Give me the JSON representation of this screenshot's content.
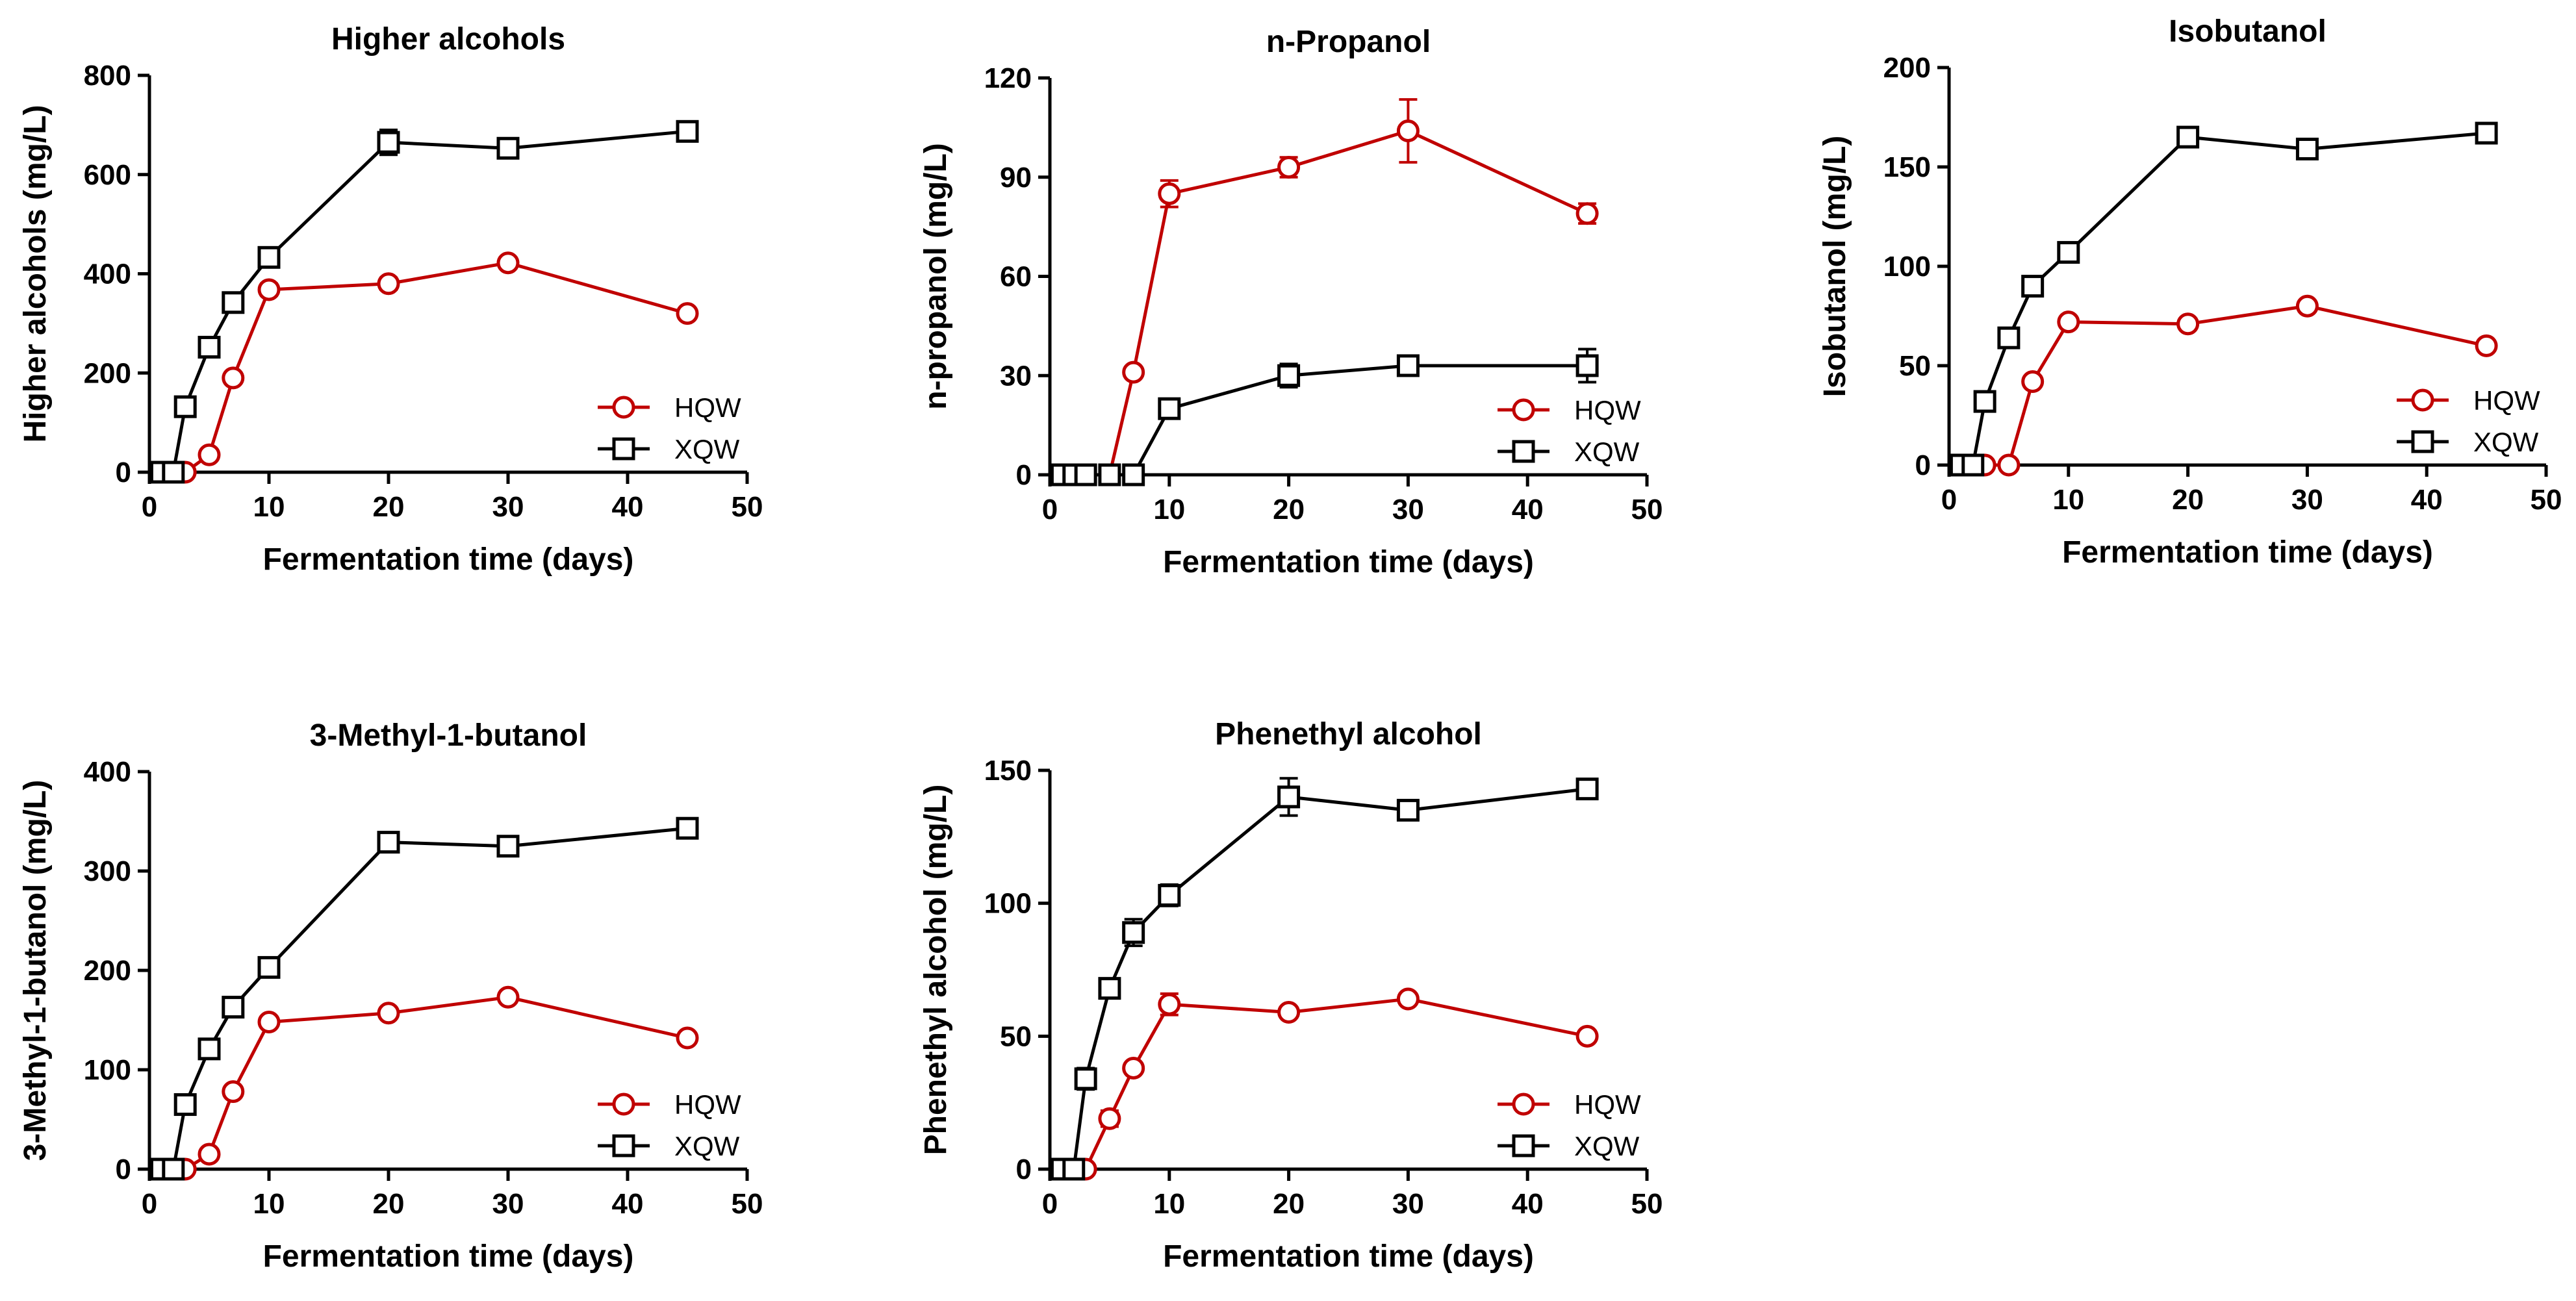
{
  "colors": {
    "HQW": "#c00000",
    "XQW": "#000000"
  },
  "chart_data": [
    {
      "type": "line",
      "title": "Higher alcohols",
      "xlabel": "Fermentation time (days)",
      "ylabel": "Higher alcohols (mg/L)",
      "xlim": [
        0,
        50
      ],
      "ylim": [
        0,
        800
      ],
      "xticks": [
        0,
        10,
        20,
        30,
        40,
        50
      ],
      "yticks": [
        0,
        200,
        400,
        600,
        800
      ],
      "legend": "bottom-right",
      "series": [
        {
          "name": "HQW",
          "marker": "circle",
          "x": [
            1,
            2,
            3,
            5,
            7,
            10,
            20,
            30,
            45
          ],
          "y": [
            0,
            0,
            0,
            35,
            190,
            368,
            380,
            422,
            320
          ],
          "err": [
            0,
            0,
            0,
            6,
            10,
            12,
            12,
            10,
            10
          ]
        },
        {
          "name": "XQW",
          "marker": "square",
          "x": [
            1,
            2,
            3,
            5,
            7,
            10,
            20,
            30,
            45
          ],
          "y": [
            0,
            0,
            132,
            252,
            342,
            433,
            665,
            653,
            687
          ],
          "err": [
            0,
            0,
            8,
            10,
            10,
            12,
            25,
            12,
            10
          ]
        }
      ]
    },
    {
      "type": "line",
      "title": "n-Propanol",
      "xlabel": "Fermentation time (days)",
      "ylabel": "n-propanol  (mg/L)",
      "xlim": [
        0,
        50
      ],
      "ylim": [
        0,
        120
      ],
      "xticks": [
        0,
        10,
        20,
        30,
        40,
        50
      ],
      "yticks": [
        0,
        30,
        60,
        90,
        120
      ],
      "legend": "bottom-right",
      "series": [
        {
          "name": "HQW",
          "marker": "circle",
          "x": [
            1,
            2,
            3,
            5,
            7,
            10,
            20,
            30,
            45
          ],
          "y": [
            0,
            0,
            0,
            0,
            31,
            85,
            93,
            104,
            79
          ],
          "err": [
            0,
            0,
            0,
            0,
            1.5,
            4,
            3,
            9.5,
            3
          ]
        },
        {
          "name": "XQW",
          "marker": "square",
          "x": [
            1,
            2,
            3,
            5,
            7,
            10,
            20,
            30,
            45
          ],
          "y": [
            0,
            0,
            0,
            0,
            0,
            20,
            30,
            33,
            33
          ],
          "err": [
            0,
            0,
            0,
            0,
            0,
            1.5,
            3.5,
            1.5,
            5
          ]
        }
      ]
    },
    {
      "type": "line",
      "title": "Isobutanol",
      "xlabel": "Fermentation time (days)",
      "ylabel": "Isobutanol (mg/L)",
      "xlim": [
        0,
        50
      ],
      "ylim": [
        0,
        200
      ],
      "xticks": [
        0,
        10,
        20,
        30,
        40,
        50
      ],
      "yticks": [
        0,
        50,
        100,
        150,
        200
      ],
      "legend": "bottom-right",
      "series": [
        {
          "name": "HQW",
          "marker": "circle",
          "x": [
            1,
            2,
            3,
            5,
            7,
            10,
            20,
            30,
            45
          ],
          "y": [
            0,
            0,
            0,
            0,
            42,
            72,
            71,
            80,
            60
          ],
          "err": [
            0,
            0,
            0,
            0,
            2,
            2,
            2,
            2,
            2
          ]
        },
        {
          "name": "XQW",
          "marker": "square",
          "x": [
            1,
            2,
            3,
            5,
            7,
            10,
            20,
            30,
            45
          ],
          "y": [
            0,
            0,
            32,
            64,
            90,
            107,
            165,
            159,
            167
          ],
          "err": [
            0,
            0,
            2,
            3,
            3,
            3,
            4,
            3,
            3
          ]
        }
      ]
    },
    {
      "type": "line",
      "title": "3-Methyl-1-butanol",
      "xlabel": "Fermentation time (days)",
      "ylabel": "3-Methyl-1-butanol  (mg/L)",
      "xlim": [
        0,
        50
      ],
      "ylim": [
        0,
        400
      ],
      "xticks": [
        0,
        10,
        20,
        30,
        40,
        50
      ],
      "yticks": [
        0,
        100,
        200,
        300,
        400
      ],
      "legend": "bottom-right",
      "series": [
        {
          "name": "HQW",
          "marker": "circle",
          "x": [
            1,
            2,
            3,
            5,
            7,
            10,
            20,
            30,
            45
          ],
          "y": [
            0,
            0,
            0,
            15,
            78,
            148,
            157,
            173,
            132
          ],
          "err": [
            0,
            0,
            0,
            3,
            4,
            5,
            5,
            5,
            5
          ]
        },
        {
          "name": "XQW",
          "marker": "square",
          "x": [
            1,
            2,
            3,
            5,
            7,
            10,
            20,
            30,
            45
          ],
          "y": [
            0,
            0,
            65,
            121,
            163,
            203,
            329,
            325,
            343
          ],
          "err": [
            0,
            0,
            5,
            5,
            5,
            5,
            8,
            5,
            5
          ]
        }
      ]
    },
    {
      "type": "line",
      "title": "Phenethyl alcohol",
      "xlabel": "Fermentation time (days)",
      "ylabel": "Phenethyl alcohol (mg/L)",
      "xlim": [
        0,
        50
      ],
      "ylim": [
        0,
        150
      ],
      "xticks": [
        0,
        10,
        20,
        30,
        40,
        50
      ],
      "yticks": [
        0,
        50,
        100,
        150
      ],
      "legend": "bottom-right",
      "series": [
        {
          "name": "HQW",
          "marker": "circle",
          "x": [
            1,
            2,
            3,
            5,
            7,
            10,
            20,
            30,
            45
          ],
          "y": [
            0,
            0,
            0,
            19,
            38,
            62,
            59,
            64,
            50
          ],
          "err": [
            0,
            0,
            0,
            3,
            2,
            4,
            2,
            2,
            2
          ]
        },
        {
          "name": "XQW",
          "marker": "square",
          "x": [
            1,
            2,
            3,
            5,
            7,
            10,
            20,
            30,
            45
          ],
          "y": [
            0,
            0,
            34,
            68,
            89,
            103,
            140,
            135,
            143
          ],
          "err": [
            0,
            0,
            4,
            2,
            5,
            4,
            7,
            3,
            3
          ]
        }
      ]
    }
  ]
}
